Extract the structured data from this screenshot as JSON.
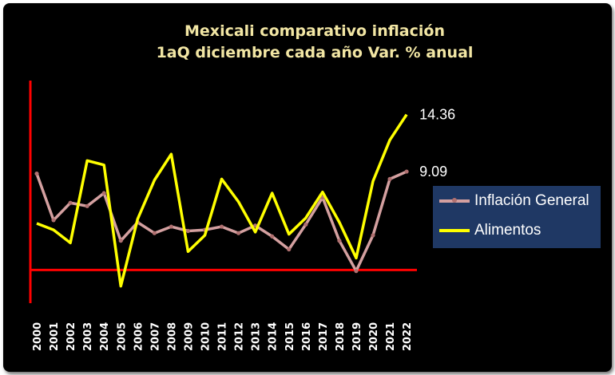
{
  "chart_data": {
    "type": "line",
    "title": "Mexicali comparativo inflación",
    "subtitle": "1aQ diciembre cada año Var. % anual",
    "categories": [
      "2000",
      "2001",
      "2002",
      "2003",
      "2004",
      "2005",
      "2006",
      "2007",
      "2008",
      "2009",
      "2010",
      "2011",
      "2012",
      "2013",
      "2014",
      "2015",
      "2016",
      "2017",
      "2018",
      "2019",
      "2020",
      "2021",
      "2022"
    ],
    "series": [
      {
        "name": "Inflación General",
        "color": "#d4a0a0",
        "marker_color": "#b07070",
        "values": [
          8.9,
          4.6,
          6.2,
          5.9,
          7.1,
          2.7,
          4.4,
          3.4,
          4.0,
          3.6,
          3.7,
          4.0,
          3.4,
          4.1,
          3.1,
          1.9,
          4.2,
          6.7,
          2.7,
          -0.1,
          3.2,
          8.4,
          9.09
        ]
      },
      {
        "name": "Alimentos",
        "color": "#ffff00",
        "values": [
          4.3,
          3.7,
          2.5,
          10.1,
          9.7,
          -1.5,
          4.7,
          8.3,
          10.7,
          1.7,
          3.2,
          8.4,
          6.3,
          3.5,
          7.1,
          3.3,
          4.8,
          7.2,
          4.4,
          1.1,
          8.2,
          12.0,
          14.36
        ]
      }
    ],
    "data_labels": [
      {
        "series": "Alimentos",
        "text": "14.36"
      },
      {
        "series": "Inflación General",
        "text": "9.09"
      }
    ],
    "ylim": [
      -3,
      17.5
    ],
    "axis_color": "#ff0000",
    "background": "#000000",
    "title_color": "#f2e6a4",
    "legend_background": "#1f3864",
    "legend_position": "right",
    "grid": false
  }
}
